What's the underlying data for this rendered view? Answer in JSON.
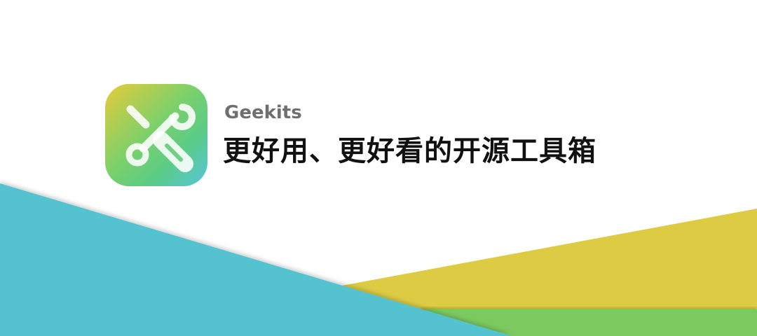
{
  "brand": {
    "app_name": "Geekits",
    "tagline": "更好用、更好看的开源工具箱",
    "logo_icon": "wrench-screwdriver-icon"
  },
  "colors": {
    "background": "#ffffff",
    "cyan": "#55c2cf",
    "yellow": "#dccb43",
    "green": "#7cc95e",
    "title_text": "#111111",
    "app_name_text": "#6f6f6f"
  }
}
